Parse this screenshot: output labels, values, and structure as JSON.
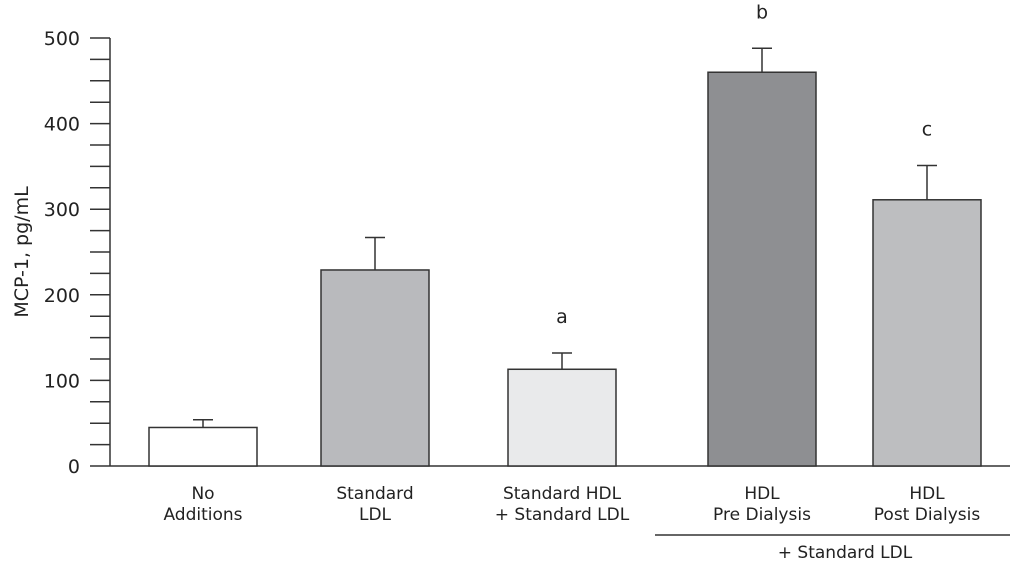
{
  "chart_data": {
    "type": "bar",
    "ylabel": "MCP-1, pg/mL",
    "ylim": [
      0,
      500
    ],
    "y_major_ticks": [
      0,
      100,
      200,
      300,
      400,
      500
    ],
    "y_minor_step": 25,
    "categories": [
      [
        "No",
        "Additions"
      ],
      [
        "Standard",
        "LDL"
      ],
      [
        "Standard HDL",
        "+ Standard LDL"
      ],
      [
        "HDL",
        "Pre Dialysis"
      ],
      [
        "HDL",
        "Post Dialysis"
      ]
    ],
    "values": [
      45,
      229,
      113,
      460,
      311
    ],
    "error": [
      9,
      38,
      19,
      28,
      40
    ],
    "bar_colors": [
      "#ffffff",
      "#b9babd",
      "#e9eaeb",
      "#8e8f92",
      "#bdbec0"
    ],
    "significance": [
      "",
      "",
      "a",
      "b",
      "c"
    ],
    "group_label": "+ Standard LDL",
    "grid": false
  }
}
